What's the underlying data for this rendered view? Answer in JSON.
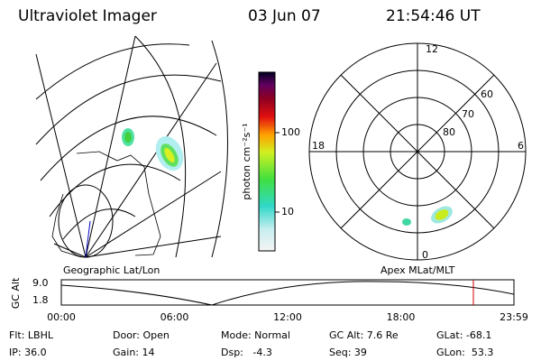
{
  "header": {
    "instrument": "Ultraviolet Imager",
    "date": "03 Jun 07",
    "time": "21:54:46 UT"
  },
  "colorbar": {
    "label": "photon cm⁻²s⁻¹",
    "ticks": [
      "100",
      "10"
    ]
  },
  "polar": {
    "mlt_labels": [
      "12",
      "18",
      "6",
      "0"
    ],
    "mlat_labels": [
      "60",
      "70",
      "80"
    ]
  },
  "panel_labels": [
    "Geographic Lat/Lon",
    "Apex MLat/MLT"
  ],
  "timeline": {
    "ylabel": "GC Alt",
    "yticks": [
      "9.0",
      "1.8"
    ],
    "xticks": [
      "00:00",
      "06:00",
      "12:00",
      "18:00",
      "23:59"
    ]
  },
  "status": {
    "rows": [
      [
        "Flt: LBHL",
        "Door: Open",
        "Mode: Normal",
        "GC Alt: 7.6 Re",
        "GLat: -68.1"
      ],
      [
        "IP: 36.0",
        "Gain: 14",
        "Dsp:   -4.3",
        "Seq: 39",
        "GLon:  53.3"
      ]
    ]
  }
}
